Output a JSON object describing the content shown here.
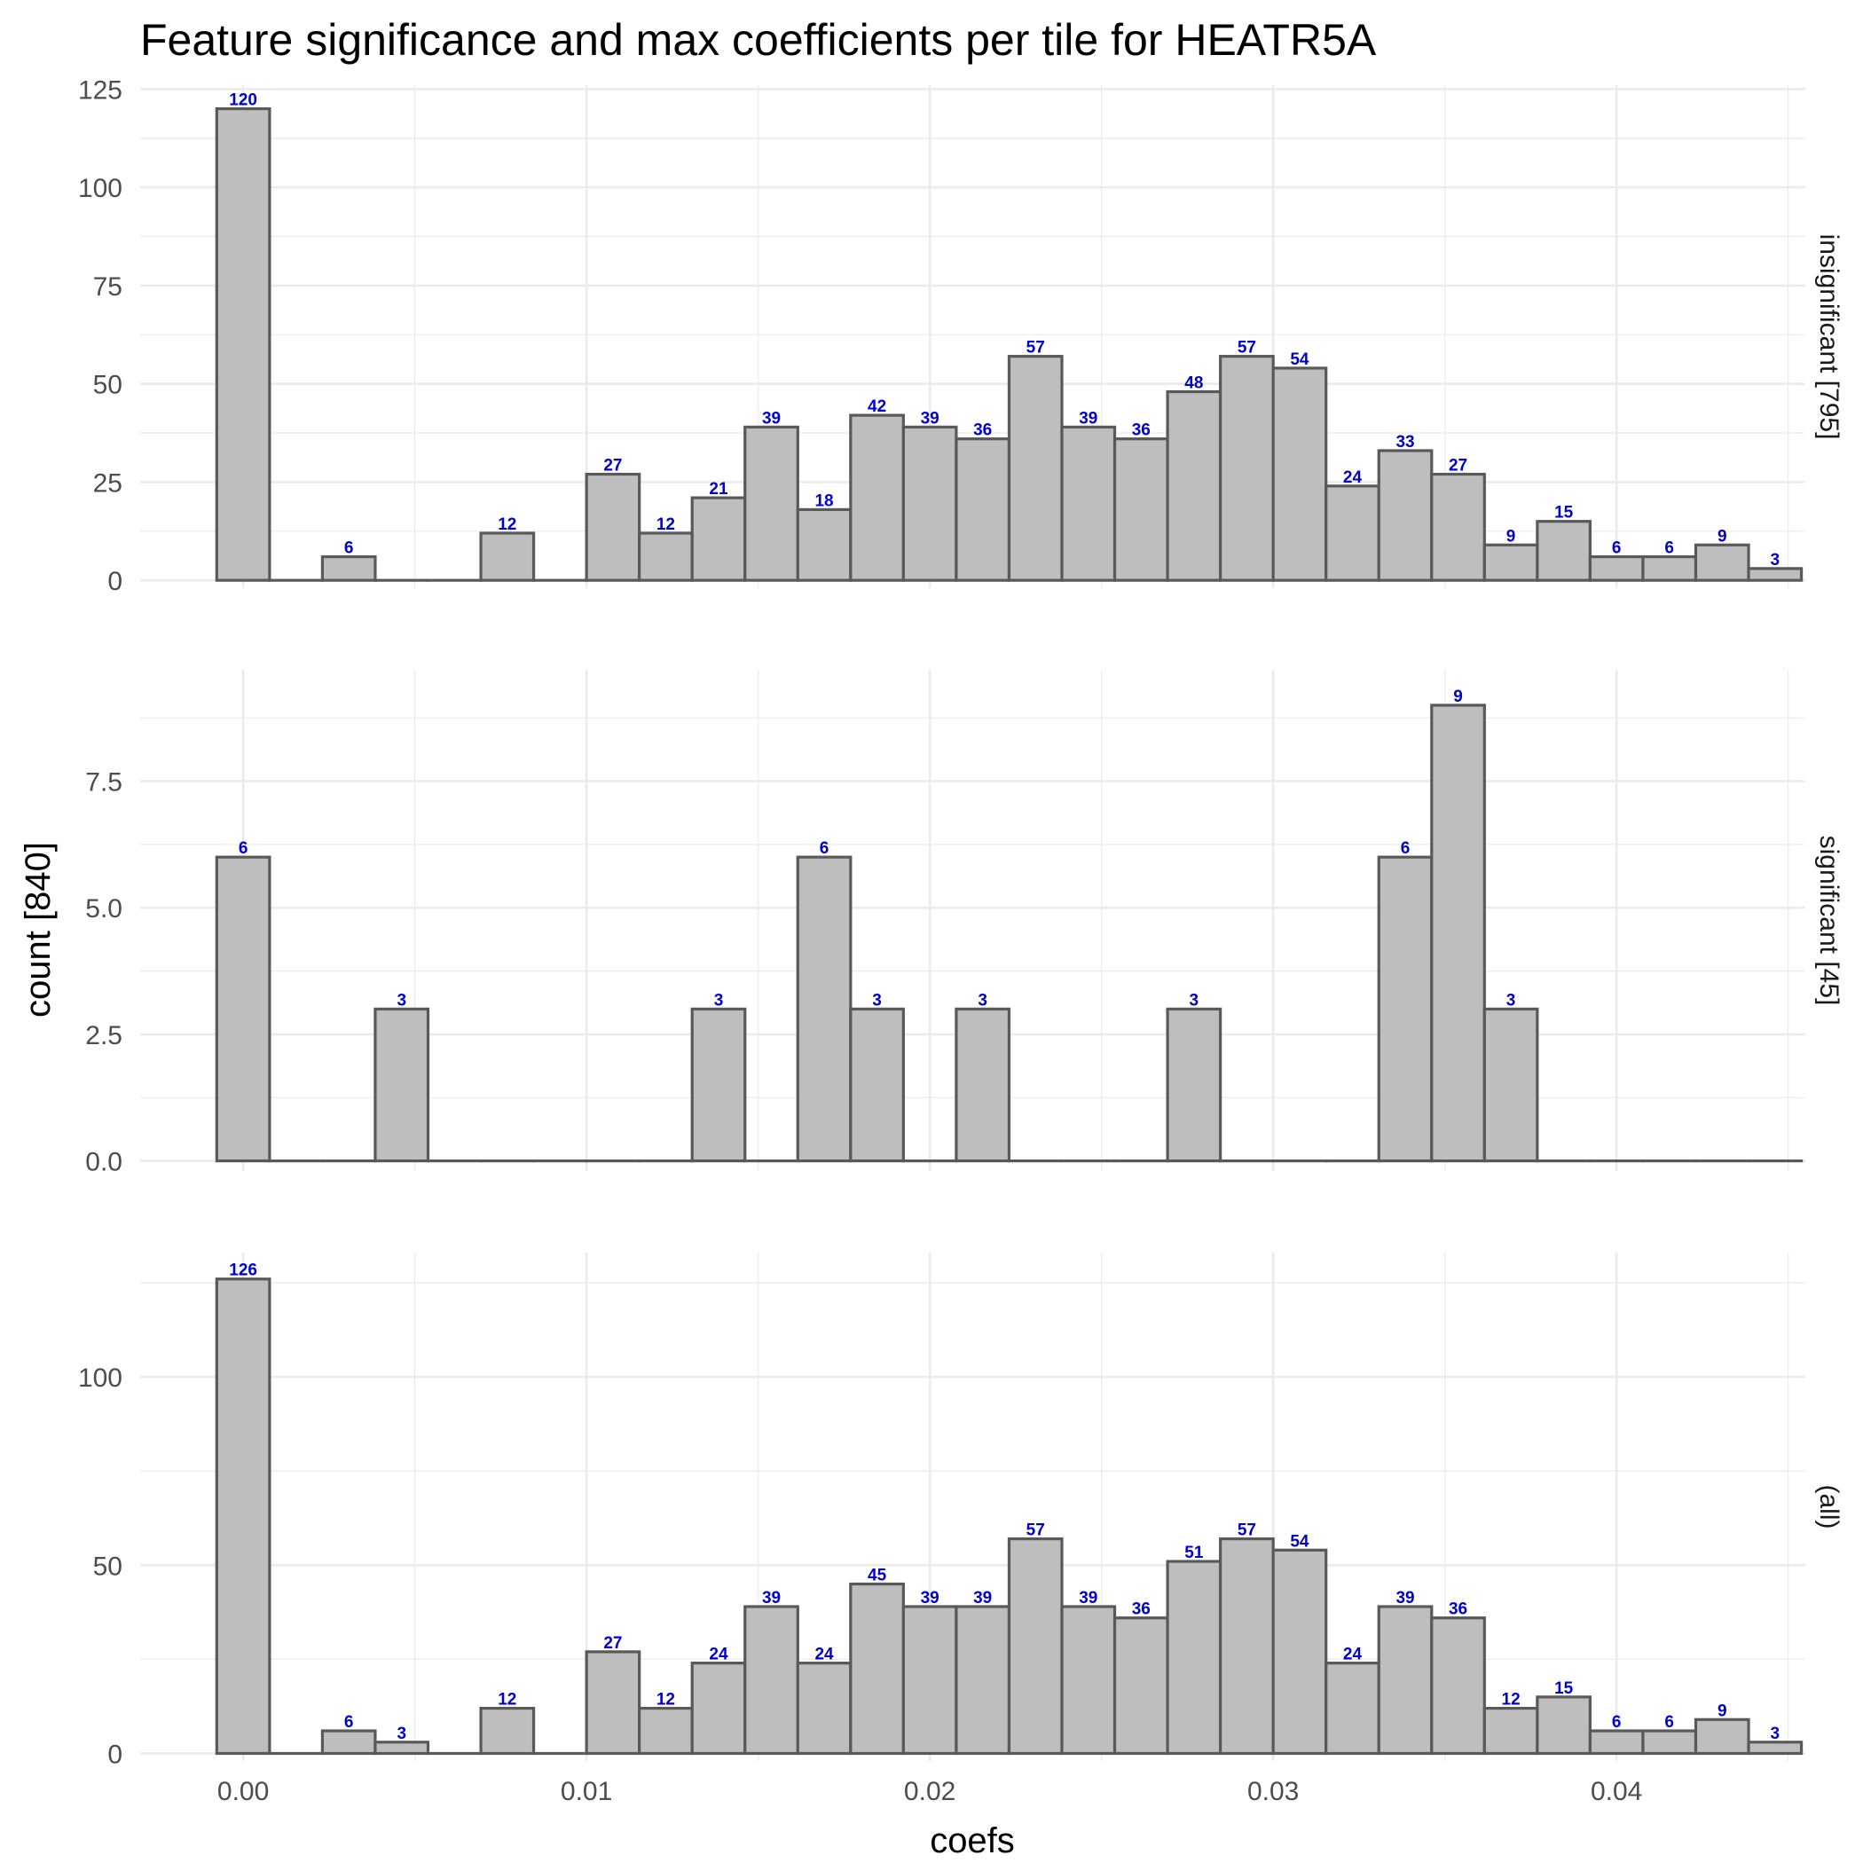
{
  "chart_data": {
    "type": "bar",
    "subtype": "faceted-histogram",
    "title": "Feature significance and max coefficients per tile for HEATR5A",
    "xlabel": "coefs",
    "ylabel": "count [840]",
    "bin_width": 0.0015385,
    "bin_centers_start": 0.0,
    "xlim": [
      -0.003,
      0.0455
    ],
    "x_ticks": [
      0.0,
      0.01,
      0.02,
      0.03,
      0.04
    ],
    "x_tick_labels": [
      "0.00",
      "0.01",
      "0.02",
      "0.03",
      "0.04"
    ],
    "x_minor_ticks": [
      0.005,
      0.015,
      0.025,
      0.035,
      0.045
    ],
    "panels": [
      {
        "label": "insignificant [795]",
        "ylim": [
          -2,
          126
        ],
        "y_ticks": [
          0,
          25,
          50,
          75,
          100,
          125
        ],
        "y_tick_labels": [
          "0",
          "25",
          "50",
          "75",
          "100",
          "125"
        ],
        "y_minor_ticks": [
          12.5,
          37.5,
          62.5,
          87.5,
          112.5
        ],
        "values": [
          120,
          0,
          6,
          0,
          0,
          12,
          0,
          27,
          12,
          21,
          39,
          18,
          42,
          39,
          36,
          57,
          39,
          36,
          48,
          57,
          54,
          24,
          33,
          27,
          9,
          15,
          6,
          6,
          9,
          3
        ]
      },
      {
        "label": "significant [45]",
        "ylim": [
          -0.2,
          9.7
        ],
        "y_ticks": [
          0,
          2.5,
          5,
          7.5
        ],
        "y_tick_labels": [
          "0.0",
          "2.5",
          "5.0",
          "7.5"
        ],
        "y_minor_ticks": [
          1.25,
          3.75,
          6.25,
          8.75
        ],
        "values": [
          6,
          0,
          0,
          3,
          0,
          0,
          0,
          0,
          0,
          3,
          0,
          6,
          3,
          0,
          3,
          0,
          0,
          0,
          3,
          0,
          0,
          0,
          6,
          9,
          3,
          0,
          0,
          0,
          0,
          0
        ]
      },
      {
        "label": "(all)",
        "ylim": [
          -2,
          133
        ],
        "y_ticks": [
          0,
          50,
          100
        ],
        "y_tick_labels": [
          "0",
          "50",
          "100"
        ],
        "y_minor_ticks": [
          25,
          75,
          125
        ],
        "values": [
          126,
          0,
          6,
          3,
          0,
          12,
          0,
          27,
          12,
          24,
          39,
          24,
          45,
          39,
          39,
          57,
          39,
          36,
          51,
          57,
          54,
          24,
          39,
          36,
          12,
          15,
          6,
          6,
          9,
          3
        ]
      }
    ]
  }
}
